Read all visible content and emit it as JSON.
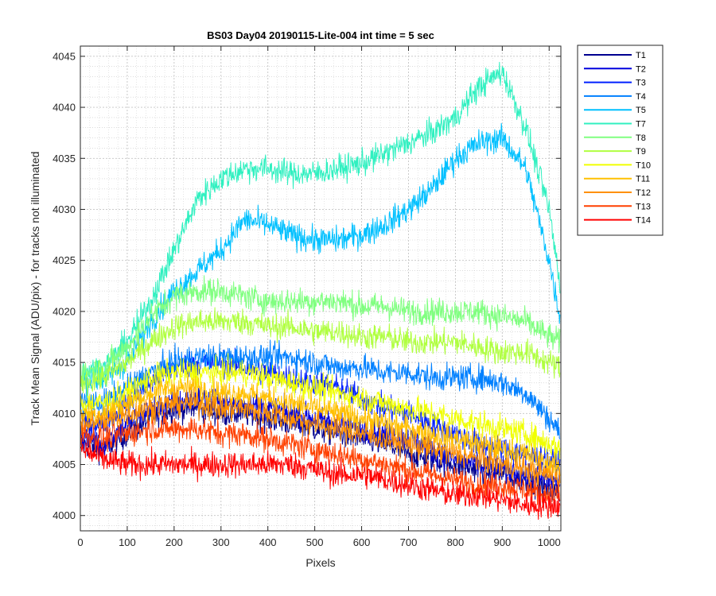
{
  "chart_data": {
    "type": "line",
    "title": "BS03 Day04 20190115-Lite-004 int time = 5 sec",
    "xlabel": "Pixels",
    "ylabel": "Track Mean Signal (ADU/pix) - for tracks not illuminated",
    "xlim": [
      0,
      1025
    ],
    "ylim": [
      3998.5,
      4046
    ],
    "xticks": [
      0,
      100,
      200,
      300,
      400,
      500,
      600,
      700,
      800,
      900,
      1000
    ],
    "yticks": [
      4000,
      4005,
      4010,
      4015,
      4020,
      4025,
      4030,
      4035,
      4040,
      4045
    ],
    "grid": "major and minor, dotted",
    "legend_position": "outside-right-top",
    "x": [
      0,
      50,
      100,
      150,
      200,
      250,
      300,
      350,
      400,
      450,
      500,
      550,
      600,
      650,
      700,
      750,
      800,
      850,
      900,
      950,
      1000,
      1025
    ],
    "series": [
      {
        "name": "T1",
        "color": "#00008f",
        "values": [
          4007,
          4006.5,
          4008,
          4009.5,
          4010.5,
          4010.5,
          4010,
          4010,
          4009.5,
          4009,
          4008.5,
          4008,
          4007.5,
          4007,
          4006,
          4005.5,
          4005,
          4004.5,
          4004,
          4003.5,
          4002.5,
          4002
        ]
      },
      {
        "name": "T2",
        "color": "#0000dd",
        "values": [
          4008,
          4007,
          4009,
          4010.5,
          4011,
          4011.5,
          4011,
          4011,
          4010.5,
          4010,
          4009.5,
          4009,
          4008.5,
          4008,
          4007.5,
          4006.5,
          4005.5,
          4005,
          4004.5,
          4004,
          4003.5,
          4003
        ]
      },
      {
        "name": "T3",
        "color": "#0020ff",
        "values": [
          4009,
          4009,
          4011,
          4013,
          4014.5,
          4015,
          4015,
          4014.5,
          4014,
          4013.5,
          4013,
          4012.5,
          4011.5,
          4010.5,
          4010,
          4009,
          4008,
          4007,
          4006.5,
          4006,
          4005.5,
          4005
        ]
      },
      {
        "name": "T4",
        "color": "#0080ff",
        "values": [
          4011,
          4011,
          4012.5,
          4014,
          4015,
          4015.5,
          4015.5,
          4015.5,
          4015.5,
          4015.5,
          4015,
          4014.5,
          4014.5,
          4014,
          4014,
          4013.5,
          4013.5,
          4013.5,
          4013,
          4012,
          4009.5,
          4008
        ]
      },
      {
        "name": "T5",
        "color": "#00c0ff",
        "values": [
          4013,
          4013.5,
          4015,
          4019,
          4022,
          4024,
          4026,
          4029,
          4028.5,
          4027.5,
          4027,
          4027,
          4027.5,
          4028.5,
          4030,
          4032,
          4035,
          4036.5,
          4037,
          4034,
          4025,
          4019
        ]
      },
      {
        "name": "T7",
        "color": "#30f0c0",
        "values": [
          4014,
          4014.5,
          4017,
          4021,
          4026,
          4031,
          4033,
          4034,
          4034,
          4033.5,
          4033.5,
          4034,
          4034.5,
          4035.5,
          4036.5,
          4037.5,
          4039,
          4042,
          4043.5,
          4038,
          4030,
          4022
        ]
      },
      {
        "name": "T8",
        "color": "#80ff80",
        "values": [
          4014,
          4014.5,
          4016.5,
          4019.5,
          4021.5,
          4022,
          4022,
          4021.5,
          4021,
          4021,
          4021,
          4021,
          4020.5,
          4020.5,
          4020,
          4020,
          4020,
          4020,
          4019.5,
          4019,
          4017.5,
          4017
        ]
      },
      {
        "name": "T9",
        "color": "#b0ff40",
        "values": [
          4013,
          4013.5,
          4015,
          4017,
          4018.5,
          4019,
          4019,
          4019,
          4018.5,
          4018.5,
          4018,
          4018,
          4017.5,
          4017.5,
          4017,
          4017,
          4017,
          4016.5,
          4016,
          4016,
          4015,
          4014.5
        ]
      },
      {
        "name": "T10",
        "color": "#f0ff00",
        "values": [
          4011,
          4011,
          4012,
          4013.5,
          4014,
          4014,
          4014,
          4014,
          4013.5,
          4013,
          4012.5,
          4012,
          4011.5,
          4011,
          4010.5,
          4010,
          4009.5,
          4009,
          4008.5,
          4008,
          4007,
          4006.5
        ]
      },
      {
        "name": "T11",
        "color": "#ffc000",
        "values": [
          4010,
          4010,
          4011,
          4012,
          4012.5,
          4012.5,
          4012,
          4012,
          4011.5,
          4011,
          4010.5,
          4010,
          4009.5,
          4009,
          4008.5,
          4008,
          4007.5,
          4007,
          4006.5,
          4006,
          4005,
          4004.5
        ]
      },
      {
        "name": "T12",
        "color": "#ff9000",
        "values": [
          4009,
          4009,
          4010,
          4010.5,
          4011,
          4011,
          4010.5,
          4010.5,
          4010,
          4009.5,
          4009,
          4008.5,
          4008,
          4007.5,
          4007,
          4006.5,
          4006,
          4005.5,
          4005,
          4004.5,
          4004,
          4003.5
        ]
      },
      {
        "name": "T13",
        "color": "#ff4000",
        "values": [
          4008,
          4007.5,
          4008,
          4008.5,
          4008.5,
          4008.5,
          4008,
          4008,
          4007.5,
          4007,
          4006.5,
          4006,
          4005.5,
          4005,
          4004.5,
          4004,
          4003.5,
          4003,
          4003,
          4002.5,
          4002,
          4002
        ]
      },
      {
        "name": "T14",
        "color": "#ff0000",
        "values": [
          4006.5,
          4005.5,
          4005,
          4005,
          4005,
          4005,
          4005,
          4005,
          4005,
          4005,
          4004.5,
          4004,
          4004,
          4003.5,
          4003,
          4002.5,
          4002,
          4002,
          4001.5,
          4001,
          4001,
          4001
        ]
      }
    ]
  }
}
